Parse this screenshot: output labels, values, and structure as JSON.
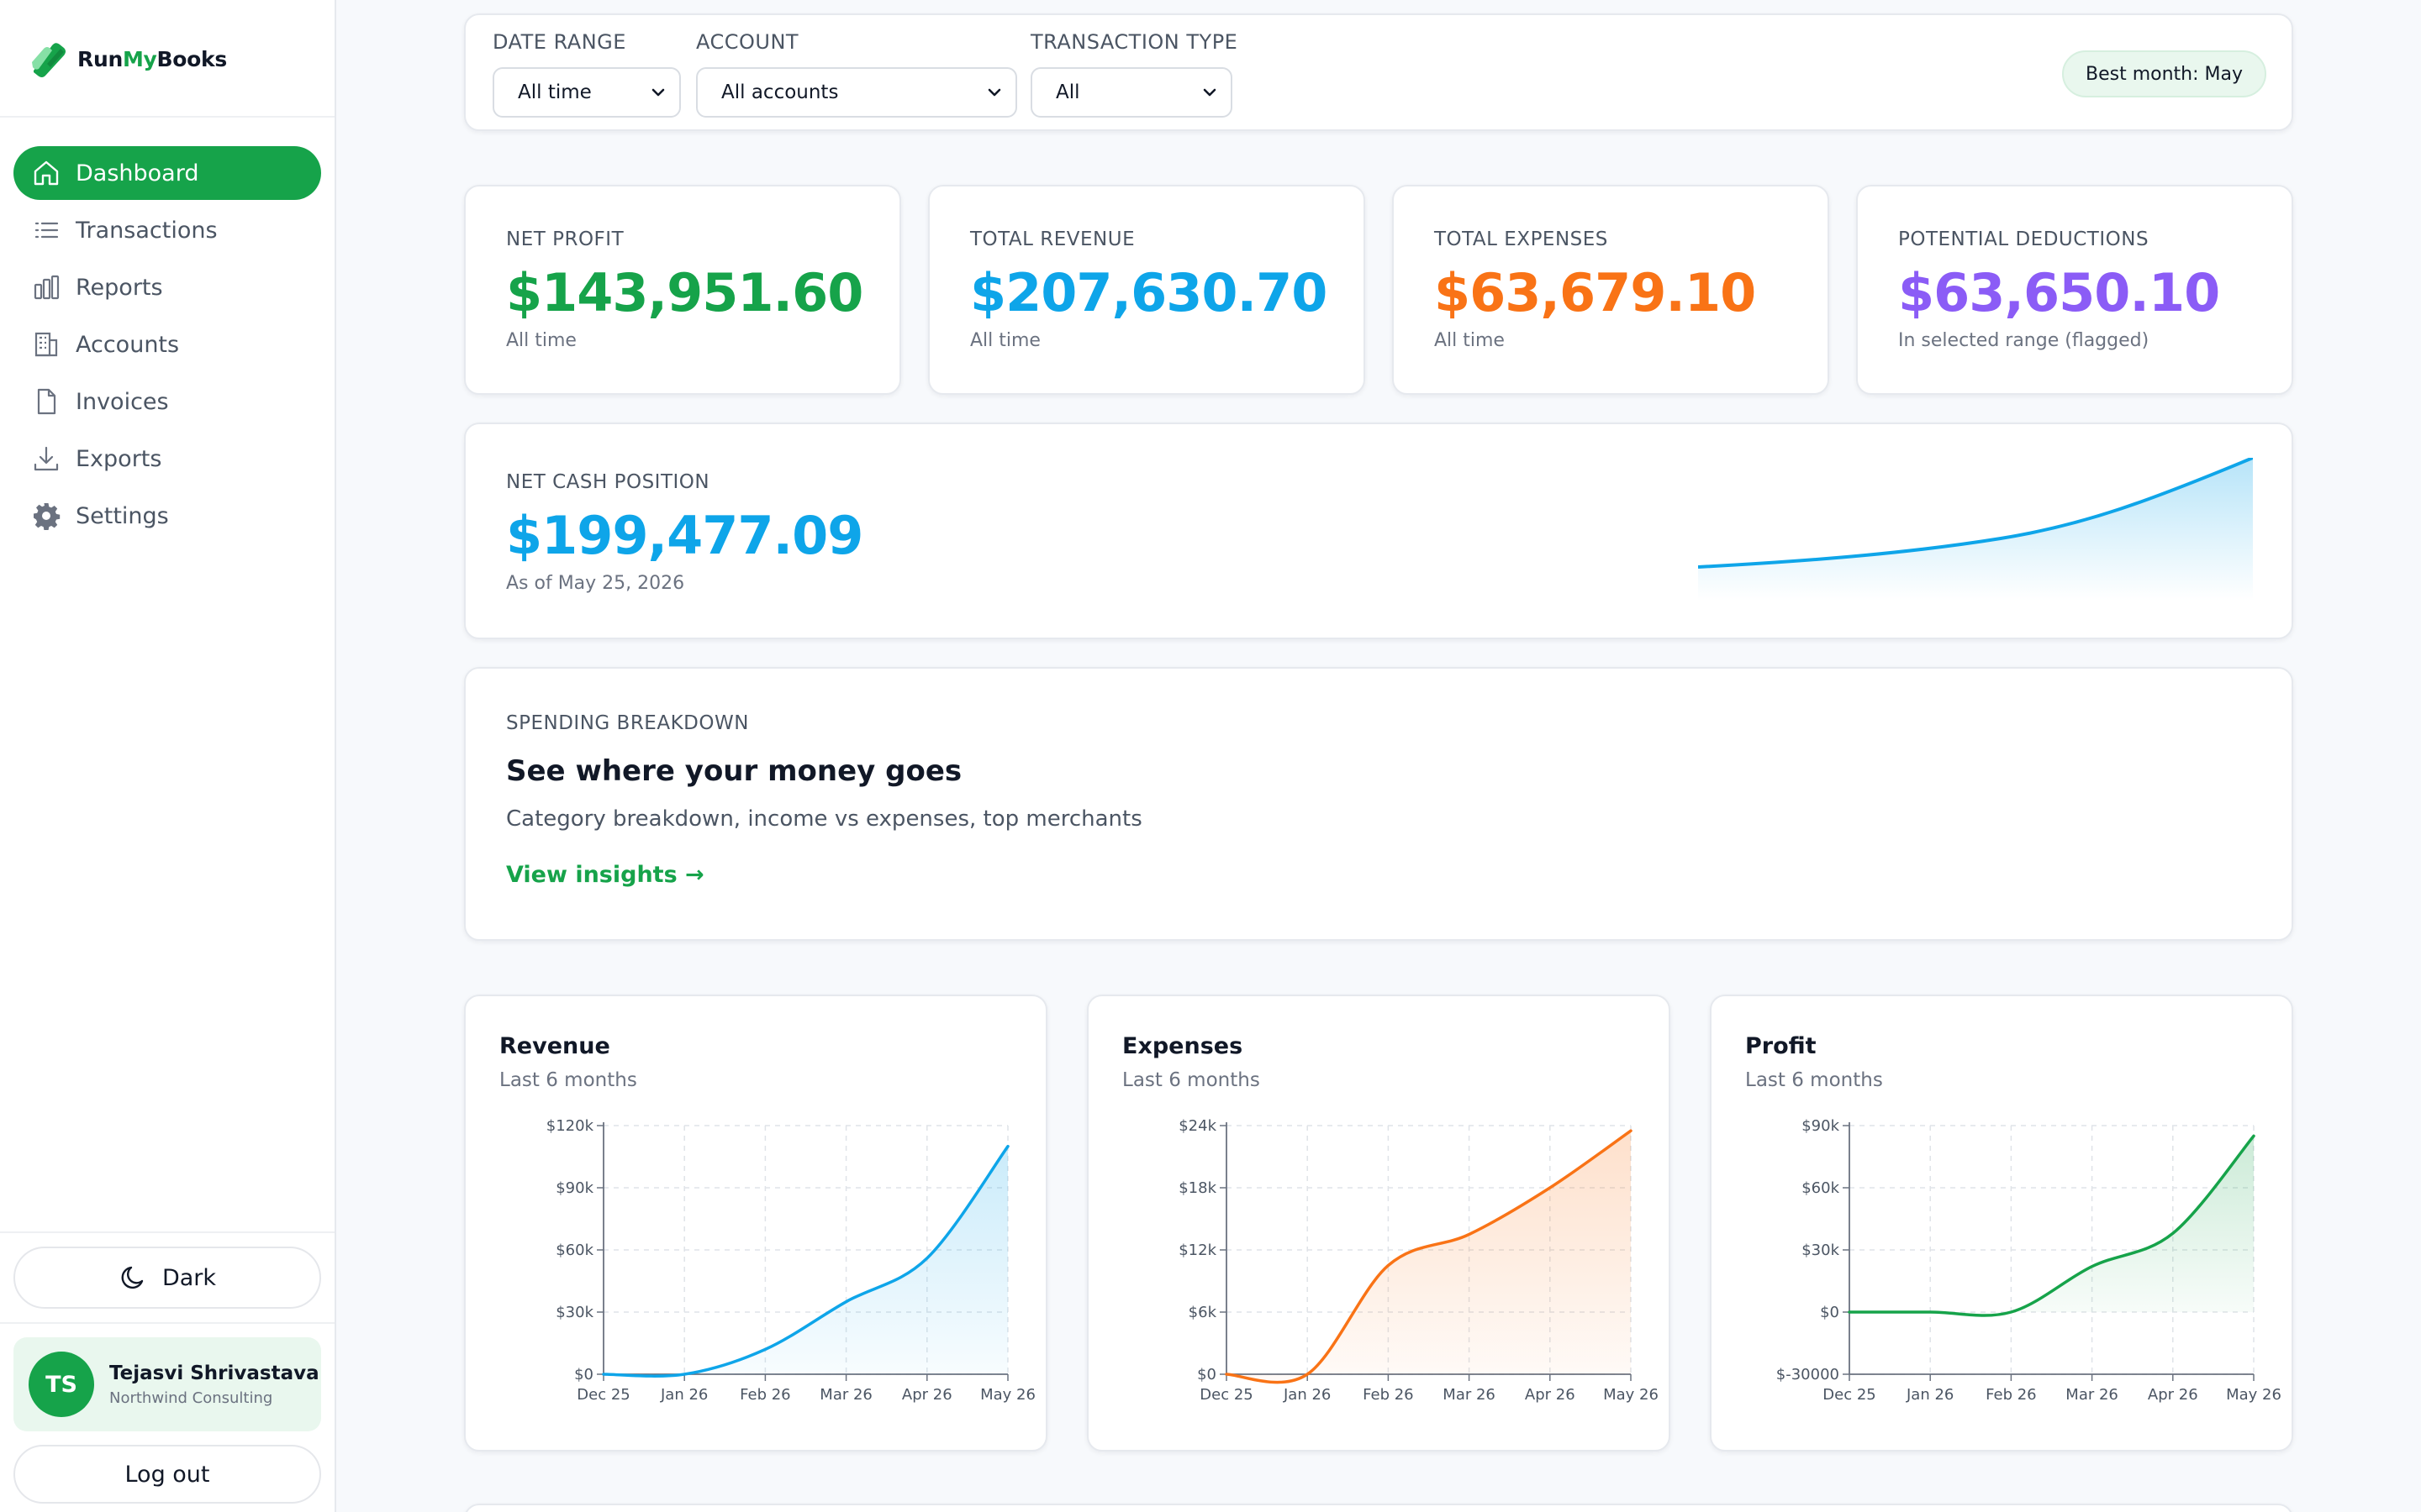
{
  "brand": {
    "name_prefix": "Run",
    "name_highlight": "My",
    "name_suffix": "Books"
  },
  "nav": [
    {
      "label": "Dashboard",
      "icon": "home-icon",
      "active": true
    },
    {
      "label": "Transactions",
      "icon": "list-icon",
      "active": false
    },
    {
      "label": "Reports",
      "icon": "bar-chart-icon",
      "active": false
    },
    {
      "label": "Accounts",
      "icon": "building-icon",
      "active": false
    },
    {
      "label": "Invoices",
      "icon": "document-icon",
      "active": false
    },
    {
      "label": "Exports",
      "icon": "download-icon",
      "active": false
    },
    {
      "label": "Settings",
      "icon": "gear-icon",
      "active": false
    }
  ],
  "theme_toggle": {
    "label": "Dark",
    "icon": "moon-icon"
  },
  "user": {
    "initials": "TS",
    "name": "Tejasvi Shrivastava",
    "org": "Northwind Consulting"
  },
  "logout_label": "Log out",
  "filters": {
    "date_range": {
      "label": "DATE RANGE",
      "value": "All time"
    },
    "account": {
      "label": "ACCOUNT",
      "value": "All accounts"
    },
    "transaction_type": {
      "label": "TRANSACTION TYPE",
      "value": "All"
    },
    "best_month": "Best month: May"
  },
  "kpis": [
    {
      "label": "NET PROFIT",
      "value": "$143,951.60",
      "sub": "All time",
      "color": "#16a34a"
    },
    {
      "label": "TOTAL REVENUE",
      "value": "$207,630.70",
      "sub": "All time",
      "color": "#0ea5e9"
    },
    {
      "label": "TOTAL EXPENSES",
      "value": "$63,679.10",
      "sub": "All time",
      "color": "#f97316"
    },
    {
      "label": "POTENTIAL DEDUCTIONS",
      "value": "$63,650.10",
      "sub": "In selected range (flagged)",
      "color": "#8b5cf6"
    }
  ],
  "cash_position": {
    "label": "NET CASH POSITION",
    "value": "$199,477.09",
    "sub": "As of May 25, 2026",
    "color": "#0ea5e9"
  },
  "spending": {
    "label": "SPENDING BREAKDOWN",
    "title": "See where your money goes",
    "description": "Category breakdown, income vs expenses, top merchants",
    "link": "View insights →"
  },
  "chart_data": [
    {
      "type": "area",
      "title": "Revenue",
      "subtitle": "Last 6 months",
      "color": "#0ea5e9",
      "x": [
        "Dec 25",
        "Jan 26",
        "Feb 26",
        "Mar 26",
        "Apr 26",
        "May 26"
      ],
      "values": [
        0,
        0,
        12000,
        35000,
        56000,
        110000
      ],
      "y_ticks": [
        "$0",
        "$30k",
        "$60k",
        "$90k",
        "$120k"
      ],
      "ylim": [
        0,
        120000
      ],
      "grid": true
    },
    {
      "type": "area",
      "title": "Expenses",
      "subtitle": "Last 6 months",
      "color": "#f97316",
      "x": [
        "Dec 25",
        "Jan 26",
        "Feb 26",
        "Mar 26",
        "Apr 26",
        "May 26"
      ],
      "values": [
        0,
        0,
        10500,
        13500,
        18000,
        23500
      ],
      "y_ticks": [
        "$0",
        "$6k",
        "$12k",
        "$18k",
        "$24k"
      ],
      "ylim": [
        0,
        24000
      ],
      "grid": true
    },
    {
      "type": "area",
      "title": "Profit",
      "subtitle": "Last 6 months",
      "color": "#16a34a",
      "x": [
        "Dec 25",
        "Jan 26",
        "Feb 26",
        "Mar 26",
        "Apr 26",
        "May 26"
      ],
      "values": [
        0,
        0,
        0,
        22000,
        38000,
        85000
      ],
      "y_ticks": [
        "$-30000",
        "$0",
        "$30k",
        "$60k",
        "$90k"
      ],
      "ylim": [
        -30000,
        90000
      ],
      "grid": true
    }
  ]
}
